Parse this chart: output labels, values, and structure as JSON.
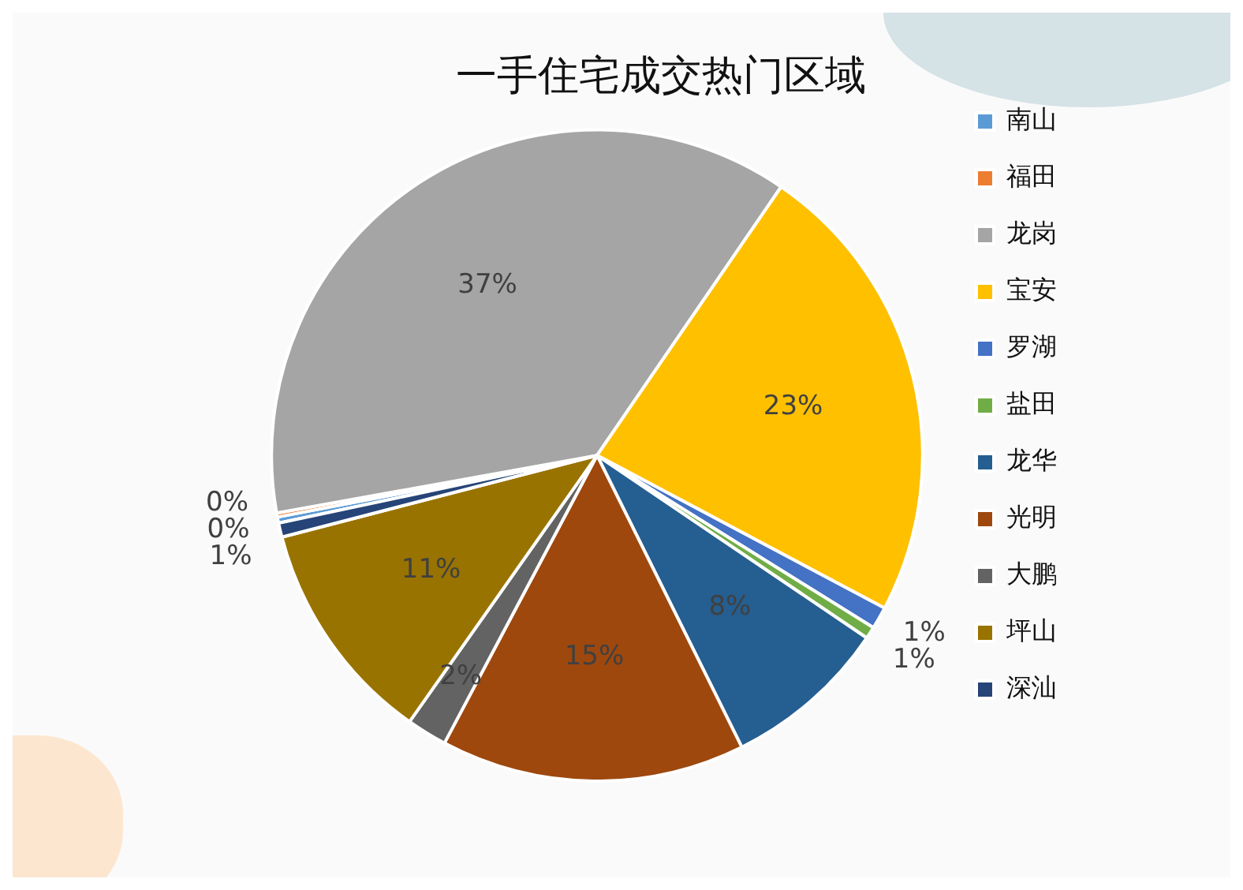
{
  "chart_data": {
    "type": "pie",
    "title": "一手住宅成交热门区域",
    "categories": [
      "南山",
      "福田",
      "龙岗",
      "宝安",
      "罗湖",
      "盐田",
      "龙华",
      "光明",
      "大鹏",
      "坪山",
      "深汕"
    ],
    "values": [
      0.3,
      0.2,
      37.4,
      23.2,
      1.1,
      0.6,
      8.2,
      15.1,
      2,
      11.2,
      0.7
    ],
    "value_labels": [
      "0%",
      "0%",
      "37%",
      "23%",
      "1%",
      "1%",
      "8%",
      "15%",
      "2%",
      "11%",
      "1%"
    ],
    "colors": [
      "#5b9bd5",
      "#ed7d31",
      "#a5a5a5",
      "#ffc000",
      "#4472c4",
      "#70ad47",
      "#255e91",
      "#9e480e",
      "#636363",
      "#997300",
      "#264478"
    ],
    "legend": "right"
  }
}
